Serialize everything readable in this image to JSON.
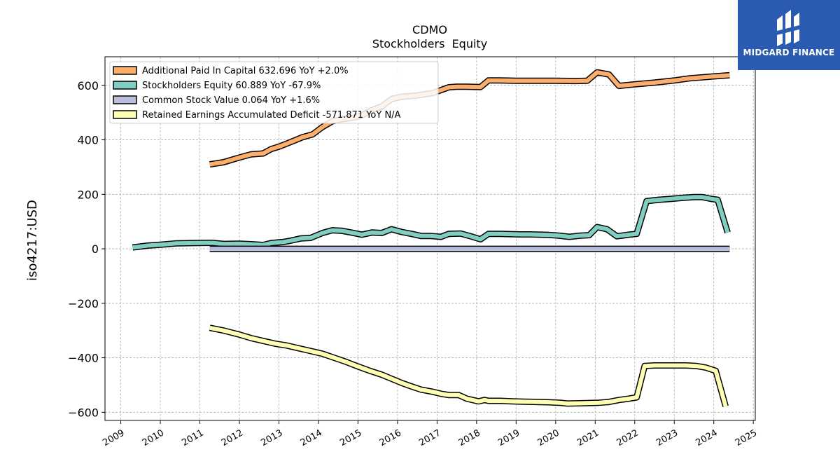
{
  "header": {
    "ticker": "CDMO",
    "subtitle": "Stockholders  Equity"
  },
  "logo": {
    "text": "MIDGARD FINANCE",
    "background": "#2a5bb0"
  },
  "chart_data": {
    "type": "line",
    "title": "CDMO",
    "subtitle": "Stockholders  Equity",
    "ylabel": "iso4217:USD",
    "xlabel": "",
    "xlim": [
      2008.6,
      2025.05
    ],
    "ylim": [
      -630,
      705
    ],
    "grid": true,
    "legend_position": "top-left",
    "x_ticks": [
      2009,
      2010,
      2011,
      2012,
      2013,
      2014,
      2015,
      2016,
      2017,
      2018,
      2019,
      2020,
      2021,
      2022,
      2023,
      2024,
      2025
    ],
    "y_ticks": [
      600,
      400,
      200,
      0,
      -200,
      -400,
      -600
    ],
    "y_tick_labels": [
      "600",
      "400",
      "200",
      "0",
      "−200",
      "−400",
      "−600"
    ],
    "series": [
      {
        "name": "Additional Paid In Capital",
        "legend": "Additional Paid In Capital  632.696 YoY +2.0%",
        "color": "#fdae6b",
        "x": [
          2011.25,
          2011.6,
          2012.0,
          2012.3,
          2012.6,
          2012.8,
          2013.0,
          2013.3,
          2013.6,
          2013.85,
          2014.1,
          2014.35,
          2014.6,
          2014.9,
          2015.1,
          2015.3,
          2015.6,
          2015.85,
          2016.1,
          2016.5,
          2016.9,
          2017.3,
          2017.5,
          2017.75,
          2018.1,
          2018.3,
          2018.6,
          2019.0,
          2019.5,
          2020.0,
          2020.5,
          2020.8,
          2021.05,
          2021.35,
          2021.6,
          2022.0,
          2022.5,
          2023.0,
          2023.4,
          2024.0,
          2024.4
        ],
        "y": [
          310,
          318,
          335,
          347,
          350,
          366,
          375,
          392,
          410,
          420,
          447,
          468,
          476,
          482,
          490,
          506,
          523,
          550,
          558,
          563,
          572,
          593,
          595,
          595,
          594,
          618,
          618,
          617,
          617,
          617,
          616,
          617,
          648,
          640,
          598,
          604,
          610,
          618,
          626,
          633,
          637
        ]
      },
      {
        "name": "Stockholders Equity",
        "legend": "Stockholders Equity  60.889 YoY -67.9%",
        "color": "#80cdc1",
        "x": [
          2009.3,
          2009.7,
          2010.0,
          2010.4,
          2010.8,
          2011.3,
          2011.6,
          2012.0,
          2012.3,
          2012.6,
          2012.8,
          2013.1,
          2013.3,
          2013.55,
          2013.8,
          2014.1,
          2014.35,
          2014.6,
          2014.85,
          2015.1,
          2015.35,
          2015.6,
          2015.85,
          2016.1,
          2016.35,
          2016.6,
          2016.85,
          2017.1,
          2017.3,
          2017.6,
          2017.85,
          2018.1,
          2018.3,
          2018.6,
          2018.85,
          2019.1,
          2019.35,
          2019.6,
          2019.85,
          2020.1,
          2020.35,
          2020.6,
          2020.85,
          2021.05,
          2021.3,
          2021.55,
          2021.85,
          2022.05,
          2022.3,
          2022.6,
          2022.9,
          2023.2,
          2023.5,
          2023.7,
          2023.95,
          2024.1,
          2024.35
        ],
        "y": [
          5,
          12,
          15,
          20,
          21,
          22,
          18,
          19,
          17,
          14,
          21,
          25,
          30,
          38,
          40,
          58,
          68,
          66,
          59,
          52,
          60,
          58,
          72,
          62,
          55,
          47,
          47,
          44,
          55,
          56,
          46,
          35,
          55,
          55,
          54,
          53,
          53,
          52,
          51,
          48,
          44,
          48,
          50,
          80,
          72,
          46,
          52,
          55,
          175,
          180,
          183,
          187,
          190,
          190,
          183,
          180,
          60
        ]
      },
      {
        "name": "Common Stock Value",
        "legend": "Common Stock Value  0.064 YoY +1.6%",
        "color": "#bcbddc",
        "x": [
          2011.25,
          2024.4
        ],
        "y": [
          0.06,
          0.064
        ]
      },
      {
        "name": "Retained Earnings Accumulated Deficit",
        "legend": "Retained Earnings Accumulated Deficit  -571.871 YoY N/A",
        "color": "#ffffb3",
        "x": [
          2011.25,
          2011.6,
          2012.0,
          2012.3,
          2012.6,
          2012.9,
          2013.2,
          2013.5,
          2013.8,
          2014.1,
          2014.4,
          2014.7,
          2015.0,
          2015.3,
          2015.6,
          2015.85,
          2016.1,
          2016.35,
          2016.6,
          2016.9,
          2017.1,
          2017.3,
          2017.55,
          2017.75,
          2018.05,
          2018.2,
          2018.3,
          2018.6,
          2018.9,
          2019.2,
          2019.5,
          2019.8,
          2020.1,
          2020.3,
          2020.6,
          2020.85,
          2021.1,
          2021.35,
          2021.6,
          2021.85,
          2022.05,
          2022.25,
          2022.5,
          2022.8,
          2023.1,
          2023.3,
          2023.55,
          2023.8,
          2024.05,
          2024.3
        ],
        "y": [
          -290,
          -300,
          -315,
          -328,
          -338,
          -348,
          -355,
          -365,
          -375,
          -385,
          -400,
          -415,
          -432,
          -448,
          -462,
          -477,
          -492,
          -505,
          -517,
          -525,
          -532,
          -537,
          -537,
          -550,
          -560,
          -555,
          -558,
          -558,
          -560,
          -561,
          -562,
          -563,
          -565,
          -568,
          -567,
          -566,
          -565,
          -562,
          -555,
          -550,
          -545,
          -430,
          -428,
          -428,
          -428,
          -428,
          -430,
          -436,
          -448,
          -578
        ]
      }
    ]
  }
}
